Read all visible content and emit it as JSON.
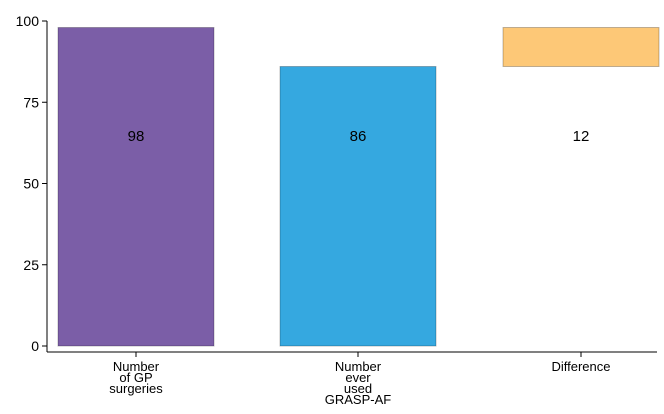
{
  "chart_data": {
    "type": "bar",
    "subtype": "waterfall",
    "categories": [
      [
        "Number",
        "of GP",
        "surgeries"
      ],
      [
        "Number",
        "ever",
        "used",
        "GRASP-AF"
      ],
      [
        "Difference"
      ]
    ],
    "bars": [
      {
        "start": 0,
        "end": 98,
        "label": "98",
        "color": "#7b5ea7"
      },
      {
        "start": 0,
        "end": 86,
        "label": "86",
        "color": "#35a8e0"
      },
      {
        "start": 86,
        "end": 98,
        "label": "12",
        "color": "#fdc877"
      }
    ],
    "yticks": [
      "0",
      "25",
      "50",
      "75",
      "100"
    ],
    "ylim": [
      0,
      100
    ],
    "grid": false,
    "legend": "none"
  }
}
